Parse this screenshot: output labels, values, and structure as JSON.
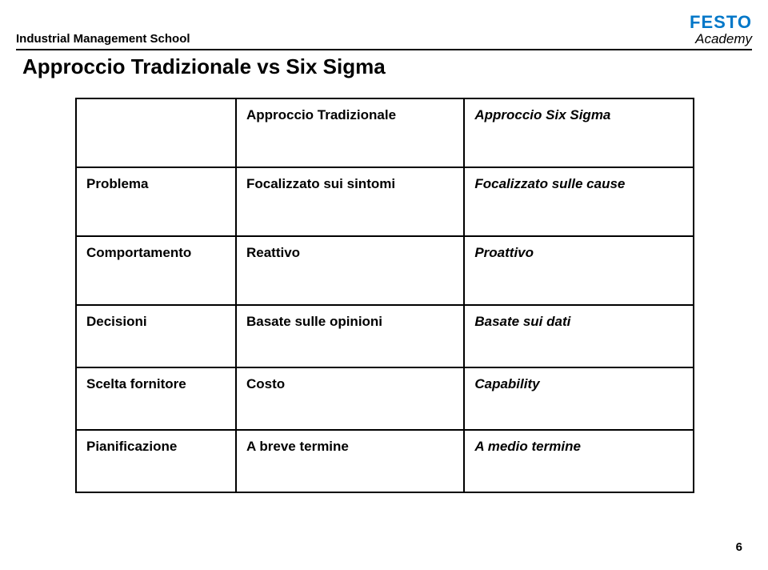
{
  "header": {
    "school": "Industrial Management School",
    "brand_top": "FESTO",
    "brand_bottom": "Academy"
  },
  "title": "Approccio Tradizionale vs Six Sigma",
  "table": {
    "h_trad": "Approccio Tradizionale",
    "h_six": "Approccio Six Sigma",
    "r1_label": "Problema",
    "r1_trad": "Focalizzato sui sintomi",
    "r1_six": "Focalizzato sulle cause",
    "r2_label": "Comportamento",
    "r2_trad": "Reattivo",
    "r2_six": "Proattivo",
    "r3_label": "Decisioni",
    "r3_trad": "Basate sulle opinioni",
    "r3_six": "Basate sui dati",
    "r4_label": "Scelta fornitore",
    "r4_trad": "Costo",
    "r4_six": "Capability",
    "r5_label": "Pianificazione",
    "r5_trad": "A breve termine",
    "r5_six": "A medio termine"
  },
  "page_number": "6"
}
